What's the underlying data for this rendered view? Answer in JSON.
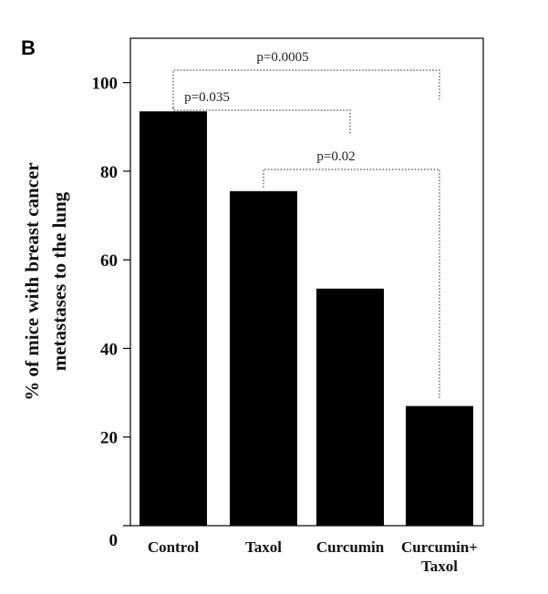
{
  "panel_label": "B",
  "chart_data": {
    "type": "bar",
    "categories": [
      [
        "Control"
      ],
      [
        "Taxol"
      ],
      [
        "Curcumin"
      ],
      [
        "Curcumin+",
        "Taxol"
      ]
    ],
    "values": [
      93.5,
      75.5,
      53.5,
      27
    ],
    "ylabel": [
      "% of mice with breast cancer",
      "metastases to the lung"
    ],
    "ylim": [
      0,
      110
    ],
    "yticks": [
      0,
      20,
      40,
      60,
      80,
      100
    ],
    "bar_color": "#000000",
    "comparisons": [
      {
        "from": 0,
        "to": 3,
        "label": "p=0.0005",
        "level": 2
      },
      {
        "from": 0,
        "to": 2,
        "label": "p=0.035",
        "level": 1
      },
      {
        "from": 1,
        "to": 3,
        "label": "p=0.02",
        "level": 0
      }
    ]
  }
}
